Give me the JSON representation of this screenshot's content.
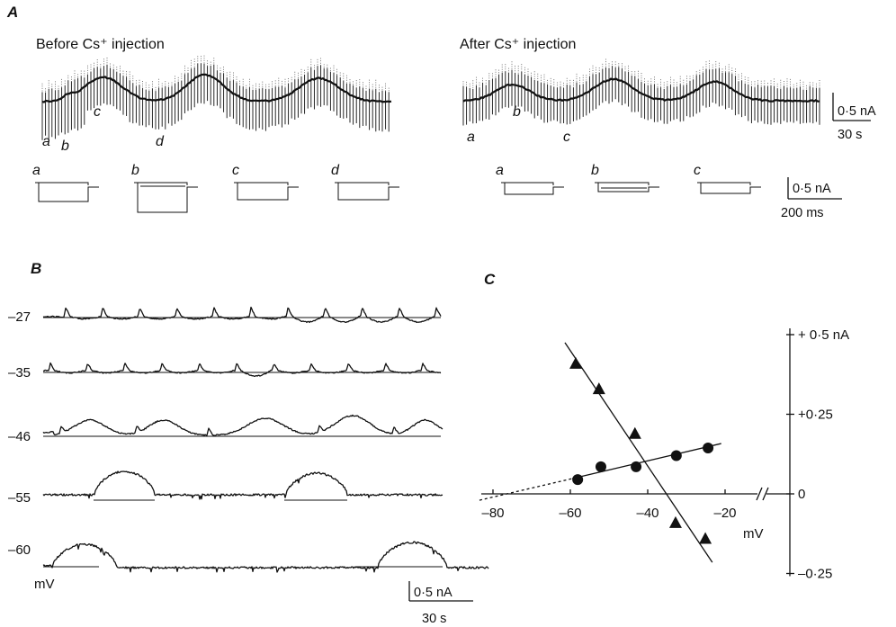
{
  "panels": {
    "A": {
      "label": "A",
      "before_title": "Before Cs⁺ injection",
      "after_title": "After Cs⁺ injection",
      "before_marks": [
        "a",
        "b",
        "c",
        "d"
      ],
      "after_marks": [
        "a",
        "b",
        "c"
      ],
      "before_step_marks": [
        "a",
        "b",
        "c",
        "d"
      ],
      "after_step_marks": [
        "a",
        "b",
        "c"
      ],
      "slow_scale_current": "0·5 nA",
      "slow_scale_time": "30 s",
      "fast_scale_current": "0·5 nA",
      "fast_scale_time": "200 ms"
    },
    "B": {
      "label": "B",
      "potentials": [
        "–27",
        "–35",
        "–46",
        "–55",
        "–60"
      ],
      "unit": "mV",
      "scale_current": "0·5 nA",
      "scale_time": "30 s"
    },
    "C": {
      "label": "C"
    }
  },
  "chart_data": {
    "type": "scatter",
    "xlabel": "mV",
    "xlim": [
      -84,
      -18
    ],
    "ylim": [
      -0.25,
      0.5
    ],
    "x_ticks": [
      {
        "value": -80,
        "label": "–80"
      },
      {
        "value": -60,
        "label": "–60"
      },
      {
        "value": -40,
        "label": "–40"
      },
      {
        "value": -20,
        "label": "–20"
      }
    ],
    "y_ticks": [
      {
        "value": 0.5,
        "label": "+ 0·5 nA"
      },
      {
        "value": 0.25,
        "label": "+0·25"
      },
      {
        "value": 0,
        "label": "0"
      },
      {
        "value": -0.25,
        "label": "–0·25"
      }
    ],
    "y_axis_side": "right",
    "x_axis_break": true,
    "grid": false,
    "legend": "none",
    "series": [
      {
        "marker": "triangle",
        "points": [
          [
            -58.6,
            0.41
          ],
          [
            -52.6,
            0.33
          ],
          [
            -43.3,
            0.19
          ],
          [
            -32.8,
            -0.09
          ],
          [
            -25.1,
            -0.14
          ]
        ],
        "fit_line": {
          "from": [
            -61.4,
            0.475
          ],
          "to": [
            -23.3,
            -0.215
          ]
        }
      },
      {
        "marker": "circle",
        "points": [
          [
            -58.1,
            0.045
          ],
          [
            -52.1,
            0.085
          ],
          [
            -43.0,
            0.085
          ],
          [
            -32.6,
            0.12
          ],
          [
            -24.4,
            0.144
          ]
        ],
        "fit_line": {
          "from": [
            -59.5,
            0.048
          ],
          "to": [
            -21.0,
            0.158
          ]
        },
        "extrapolation": {
          "from": [
            -83.5,
            -0.02
          ],
          "to": [
            -59.5,
            0.048
          ],
          "style": "dashed"
        }
      }
    ]
  }
}
